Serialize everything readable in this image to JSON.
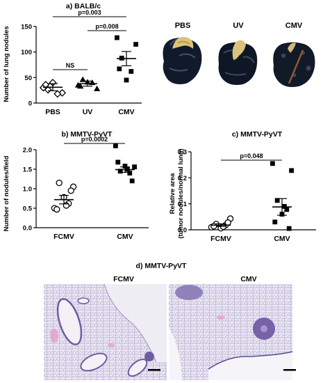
{
  "panel_a": {
    "title": "a) BALB/c",
    "ylabel": "Number of lung nodules",
    "photo_labels": [
      "PBS",
      "UV",
      "CMV"
    ]
  },
  "panel_b": {
    "title": "b) MMTV-PyVT",
    "ylabel": "Number of nodules/field"
  },
  "panel_c": {
    "title": "c) MMTV-PyVT",
    "ylabel_line1": "Relative area",
    "ylabel_line2": "(tumor nodules/normal lung)"
  },
  "panel_d": {
    "title": "d) MMTV-PyVT",
    "image_labels": [
      "FCMV",
      "CMV"
    ]
  },
  "colors": {
    "ink": "#000000",
    "lung_tissue": "#c9c3dc",
    "tissue_purple": "#8a78b5",
    "blood_pink": "#e3a0c8"
  },
  "chart_data": [
    {
      "type": "scatter",
      "panel": "a",
      "ylabel": "Number of lung nodules",
      "ylim": [
        0,
        150
      ],
      "yticks": [
        0,
        50,
        100,
        150
      ],
      "categories": [
        "PBS",
        "UV",
        "CMV"
      ],
      "markers": [
        "open-diamond",
        "filled-triangle",
        "filled-square"
      ],
      "points": [
        [
          30,
          20,
          26,
          18,
          40,
          36
        ],
        [
          35,
          28,
          46,
          40,
          41,
          33
        ],
        [
          128,
          115,
          88,
          62,
          45,
          67
        ]
      ],
      "means": [
        31,
        38,
        87
      ],
      "sem": [
        7,
        5,
        14
      ],
      "comparisons": [
        {
          "from": 0,
          "to": 1,
          "label": "NS"
        },
        {
          "from": 1,
          "to": 2,
          "label": "p=0.008"
        },
        {
          "from": 0,
          "to": 2,
          "label": "p=0.003"
        }
      ]
    },
    {
      "type": "scatter",
      "panel": "b",
      "ylabel": "Number of nodules/field",
      "ylim": [
        0,
        2.0
      ],
      "yticks": [
        0.0,
        0.5,
        1.0,
        1.5,
        2.0
      ],
      "tick_format": "fixed1",
      "categories": [
        "FCMV",
        "CMV"
      ],
      "markers": [
        "open-circle",
        "filled-square"
      ],
      "points": [
        [
          0.5,
          1.05,
          1.15,
          0.62,
          0.78,
          0.47,
          0.95,
          0.57
        ],
        [
          2.1,
          1.56,
          1.45,
          1.4,
          1.58,
          1.68,
          1.2,
          1.5
        ]
      ],
      "means": [
        0.72,
        1.49
      ],
      "sem": [
        0.11,
        0.07
      ],
      "comparisons": [
        {
          "from": 0,
          "to": 1,
          "label": "p=0.0002"
        }
      ]
    },
    {
      "type": "scatter",
      "panel": "c",
      "ylabel": "Relative area (tumor nodules/normal lung)",
      "ylim": [
        0,
        0.3
      ],
      "yticks": [
        0.0,
        0.1,
        0.2,
        0.3
      ],
      "tick_format": "fixed1",
      "categories": [
        "FCMV",
        "CMV"
      ],
      "markers": [
        "open-circle",
        "filled-square"
      ],
      "points": [
        [
          0.01,
          0.043,
          0.022,
          0.018,
          0.006,
          0.014,
          0.028,
          0.012
        ],
        [
          0.255,
          0.228,
          0.113,
          0.078,
          0.06,
          0.03,
          0.005,
          0.09
        ]
      ],
      "means": [
        0.018,
        0.088
      ],
      "sem": [
        0.005,
        0.032
      ],
      "comparisons": [
        {
          "from": 0,
          "to": 1,
          "label": "p=0.048"
        }
      ]
    }
  ]
}
